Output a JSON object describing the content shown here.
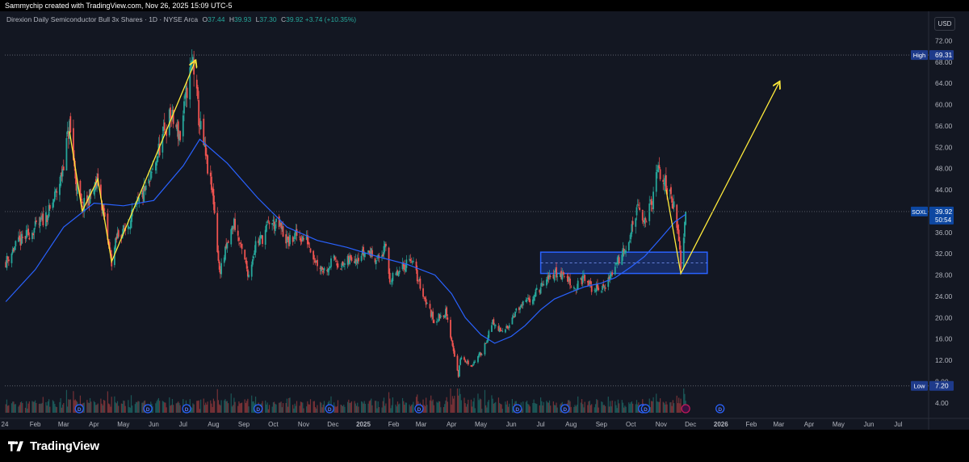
{
  "header": {
    "attribution": "Sammychip created with TradingView.com, Nov 26, 2025 15:09 UTC-5"
  },
  "legend": {
    "instrument": "Direxion Daily Semiconductor Bull 3x Shares · 1D · NYSE Arca",
    "open_label": "O",
    "open": "37.44",
    "high_label": "H",
    "high": "39.93",
    "low_label": "L",
    "low": "37.30",
    "close_label": "C",
    "close": "39.92",
    "change": "+3.74 (+10.35%)"
  },
  "currency": "USD",
  "footer": {
    "brand": "TradingView"
  },
  "colors": {
    "background": "#131722",
    "up": "#26a69a",
    "down": "#ef5350",
    "ma": "#2962ff",
    "annotation": "#ffeb3b",
    "zone": "#2962ff",
    "price_tag": "#1e3a8a"
  },
  "chart_data": {
    "type": "candlestick",
    "title": "Direxion Daily Semiconductor Bull 3x Shares · 1D · NYSE Arca",
    "ticker": "SOXL",
    "last_price": 39.92,
    "countdown": "50:54",
    "high_marker": {
      "label": "High",
      "value": 69.31
    },
    "low_marker": {
      "label": "Low",
      "value": 7.2
    },
    "ylim": [
      2,
      76
    ],
    "y_ticks": [
      "72.00",
      "68.00",
      "64.00",
      "60.00",
      "56.00",
      "52.00",
      "48.00",
      "44.00",
      "40.00",
      "36.00",
      "32.00",
      "28.00",
      "24.00",
      "20.00",
      "16.00",
      "12.00",
      "8.00",
      "4.00"
    ],
    "x_ticks": [
      "24",
      "Feb",
      "Mar",
      "Apr",
      "May",
      "Jun",
      "Jul",
      "Aug",
      "Sep",
      "Oct",
      "Nov",
      "Dec",
      "2025",
      "Feb",
      "Mar",
      "Apr",
      "May",
      "Jun",
      "Jul",
      "Aug",
      "Sep",
      "Oct",
      "Nov",
      "Dec",
      "2026",
      "Feb",
      "Mar",
      "Apr",
      "May",
      "Jun",
      "Jul"
    ],
    "price_path": [
      [
        "2024-01-02",
        30.5
      ],
      [
        "2024-01-12",
        33.5
      ],
      [
        "2024-01-24",
        35.5
      ],
      [
        "2024-02-05",
        37.5
      ],
      [
        "2024-02-16",
        40.0
      ],
      [
        "2024-02-27",
        46.0
      ],
      [
        "2024-03-07",
        56.0
      ],
      [
        "2024-03-14",
        45.0
      ],
      [
        "2024-03-20",
        40.5
      ],
      [
        "2024-03-27",
        42.5
      ],
      [
        "2024-04-05",
        45.5
      ],
      [
        "2024-04-12",
        38.0
      ],
      [
        "2024-04-19",
        30.5
      ],
      [
        "2024-04-25",
        35.5
      ],
      [
        "2024-05-03",
        36.5
      ],
      [
        "2024-05-15",
        41.0
      ],
      [
        "2024-05-28",
        45.5
      ],
      [
        "2024-06-07",
        52.0
      ],
      [
        "2024-06-18",
        58.0
      ],
      [
        "2024-06-28",
        54.0
      ],
      [
        "2024-07-05",
        63.0
      ],
      [
        "2024-07-11",
        68.5
      ],
      [
        "2024-07-17",
        57.5
      ],
      [
        "2024-07-25",
        49.0
      ],
      [
        "2024-08-01",
        42.0
      ],
      [
        "2024-08-07",
        28.5
      ],
      [
        "2024-08-15",
        33.5
      ],
      [
        "2024-08-22",
        38.0
      ],
      [
        "2024-08-29",
        33.0
      ],
      [
        "2024-09-06",
        28.0
      ],
      [
        "2024-09-13",
        34.0
      ],
      [
        "2024-09-20",
        35.0
      ],
      [
        "2024-09-27",
        38.0
      ],
      [
        "2024-10-08",
        37.0
      ],
      [
        "2024-10-16",
        34.0
      ],
      [
        "2024-10-25",
        35.5
      ],
      [
        "2024-11-05",
        34.5
      ],
      [
        "2024-11-14",
        30.5
      ],
      [
        "2024-11-22",
        29.0
      ],
      [
        "2024-12-03",
        31.0
      ],
      [
        "2024-12-10",
        29.5
      ],
      [
        "2024-12-19",
        31.0
      ],
      [
        "2025-01-06",
        32.5
      ],
      [
        "2025-01-16",
        31.0
      ],
      [
        "2025-01-24",
        33.0
      ],
      [
        "2025-01-28",
        27.0
      ],
      [
        "2025-02-07",
        28.5
      ],
      [
        "2025-02-18",
        31.5
      ],
      [
        "2025-02-26",
        27.0
      ],
      [
        "2025-03-07",
        22.5
      ],
      [
        "2025-03-14",
        19.5
      ],
      [
        "2025-03-26",
        21.0
      ],
      [
        "2025-04-03",
        14.0
      ],
      [
        "2025-04-08",
        9.0
      ],
      [
        "2025-04-10",
        12.5
      ],
      [
        "2025-04-21",
        11.0
      ],
      [
        "2025-05-02",
        13.5
      ],
      [
        "2025-05-13",
        19.0
      ],
      [
        "2025-05-23",
        17.0
      ],
      [
        "2025-06-05",
        21.0
      ],
      [
        "2025-06-20",
        23.5
      ],
      [
        "2025-07-03",
        26.0
      ],
      [
        "2025-07-15",
        28.5
      ],
      [
        "2025-07-28",
        27.5
      ],
      [
        "2025-08-05",
        25.5
      ],
      [
        "2025-08-14",
        27.5
      ],
      [
        "2025-08-22",
        25.5
      ],
      [
        "2025-09-03",
        25.5
      ],
      [
        "2025-09-12",
        28.5
      ],
      [
        "2025-09-22",
        32.5
      ],
      [
        "2025-09-30",
        35.0
      ],
      [
        "2025-10-07",
        40.5
      ],
      [
        "2025-10-14",
        38.0
      ],
      [
        "2025-10-23",
        41.5
      ],
      [
        "2025-10-29",
        48.0
      ],
      [
        "2025-11-04",
        45.5
      ],
      [
        "2025-11-12",
        43.0
      ],
      [
        "2025-11-20",
        33.0
      ],
      [
        "2025-11-21",
        29.5
      ],
      [
        "2025-11-24",
        36.2
      ],
      [
        "2025-11-26",
        39.92
      ]
    ],
    "moving_average": [
      [
        "2024-01-02",
        23.0
      ],
      [
        "2024-02-01",
        29.0
      ],
      [
        "2024-03-01",
        37.0
      ],
      [
        "2024-04-01",
        41.5
      ],
      [
        "2024-05-01",
        41.0
      ],
      [
        "2024-06-01",
        42.0
      ],
      [
        "2024-07-01",
        48.5
      ],
      [
        "2024-07-18",
        53.5
      ],
      [
        "2024-08-15",
        49.0
      ],
      [
        "2024-09-15",
        42.5
      ],
      [
        "2024-10-15",
        37.0
      ],
      [
        "2024-11-15",
        34.5
      ],
      [
        "2024-12-15",
        33.2
      ],
      [
        "2025-01-15",
        31.5
      ],
      [
        "2025-02-15",
        30.0
      ],
      [
        "2025-03-15",
        28.0
      ],
      [
        "2025-04-01",
        24.5
      ],
      [
        "2025-04-15",
        20.0
      ],
      [
        "2025-05-01",
        16.8
      ],
      [
        "2025-05-15",
        15.2
      ],
      [
        "2025-06-01",
        16.5
      ],
      [
        "2025-06-15",
        18.5
      ],
      [
        "2025-07-01",
        21.5
      ],
      [
        "2025-07-15",
        23.5
      ],
      [
        "2025-08-01",
        24.8
      ],
      [
        "2025-08-15",
        25.8
      ],
      [
        "2025-09-01",
        26.5
      ],
      [
        "2025-09-15",
        27.5
      ],
      [
        "2025-10-01",
        29.5
      ],
      [
        "2025-10-15",
        31.5
      ],
      [
        "2025-11-01",
        35.0
      ],
      [
        "2025-11-15",
        38.0
      ],
      [
        "2025-11-26",
        39.4
      ]
    ],
    "demand_zone": {
      "from": "2025-07-01",
      "to": "2025-12-18",
      "low": 28.3,
      "high": 32.3
    },
    "annotations": [
      {
        "type": "polyline",
        "points": [
          [
            "2024-03-07",
            55.0
          ],
          [
            "2024-03-20",
            40.0
          ],
          [
            "2024-04-05",
            46.0
          ],
          [
            "2024-04-19",
            30.5
          ],
          [
            "2024-07-13",
            68.0
          ]
        ],
        "arrow": true
      },
      {
        "type": "polyline",
        "points": [
          [
            "2025-11-06",
            44.0
          ],
          [
            "2025-11-21",
            28.3
          ],
          [
            "2026-03-01",
            64.0
          ]
        ],
        "arrow": true
      }
    ],
    "event_markers": [
      "D",
      "D",
      "D",
      "D",
      "D",
      "D",
      "D",
      "D",
      "D",
      "D",
      "D"
    ],
    "grid": false
  }
}
